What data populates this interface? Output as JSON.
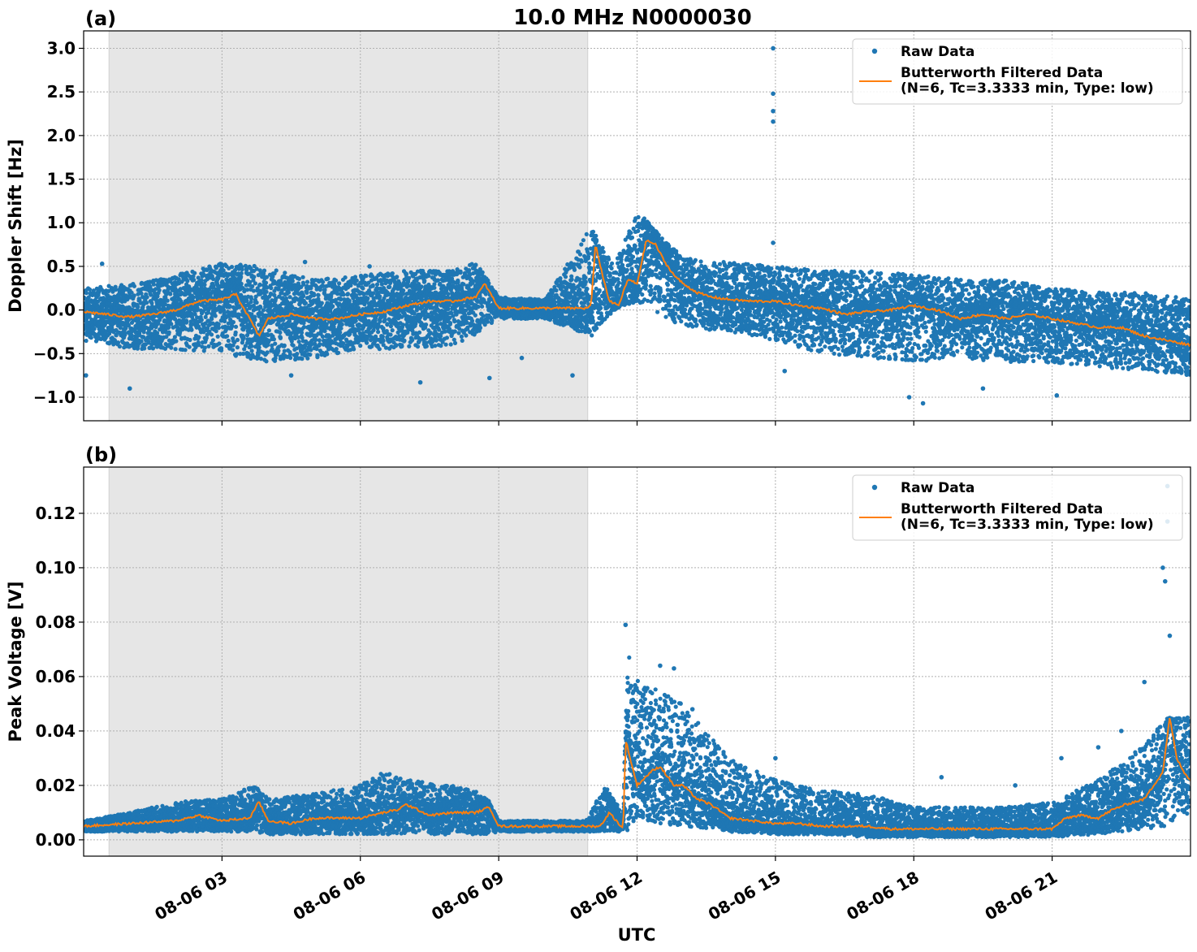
{
  "figure": {
    "title": "10.0 MHz N0000030",
    "xlabel": "UTC"
  },
  "colors": {
    "raw": "#1f77b4",
    "filtered": "#ff7f0e",
    "night_shade": "#e6e6e6",
    "grid": "#b0b0b0"
  },
  "chart_data": [
    {
      "type": "scatter",
      "panel_label": "(a)",
      "title": "10.0 MHz N0000030",
      "xlabel": "",
      "ylabel": "Doppler Shift [Hz]",
      "xlim_hours": [
        0.0,
        24.0
      ],
      "ylim": [
        -1.27,
        3.2
      ],
      "yticks": [
        3.0,
        2.5,
        2.0,
        1.5,
        1.0,
        0.5,
        0.0,
        -0.5,
        -1.0
      ],
      "ytick_labels": [
        "3.0",
        "2.5",
        "2.0",
        "1.5",
        "1.0",
        "0.5",
        "0.0",
        "−0.5",
        "−1.0"
      ],
      "xticks_hours": [
        3,
        6,
        9,
        12,
        15,
        18,
        21
      ],
      "shaded_interval_hours": [
        0.55,
        10.93
      ],
      "grid": true,
      "legend_placement": "top-right",
      "legend": [
        "Raw Data",
        "Butterworth Filtered Data\n(N=6, Tc=3.3333 min, Type: low)"
      ],
      "series": [
        {
          "name": "Raw Data",
          "kind": "scatter_envelope",
          "x_hours": [
            0,
            1,
            2,
            3,
            4,
            5,
            6,
            7,
            8,
            8.5,
            9,
            10,
            11,
            11.5,
            12,
            12.5,
            13,
            14,
            15,
            16,
            17,
            18,
            19,
            20,
            21,
            22,
            23,
            24
          ],
          "upper": [
            0.25,
            0.3,
            0.4,
            0.55,
            0.5,
            0.35,
            0.4,
            0.45,
            0.45,
            0.55,
            0.15,
            0.12,
            0.95,
            0.5,
            1.15,
            0.85,
            0.6,
            0.55,
            0.5,
            0.45,
            0.45,
            0.4,
            0.35,
            0.35,
            0.25,
            0.2,
            0.2,
            0.15
          ],
          "lower": [
            -0.35,
            -0.45,
            -0.45,
            -0.5,
            -0.6,
            -0.55,
            -0.45,
            -0.45,
            -0.4,
            -0.3,
            -0.1,
            -0.1,
            -0.3,
            0.0,
            0.1,
            -0.05,
            -0.2,
            -0.25,
            -0.35,
            -0.5,
            -0.55,
            -0.6,
            -0.55,
            -0.6,
            -0.6,
            -0.65,
            -0.7,
            -0.75
          ],
          "outliers": [
            [
              0.05,
              -0.75
            ],
            [
              0.4,
              0.53
            ],
            [
              1.0,
              -0.9
            ],
            [
              4.5,
              -0.75
            ],
            [
              4.8,
              0.55
            ],
            [
              6.2,
              0.5
            ],
            [
              7.3,
              -0.83
            ],
            [
              8.8,
              -0.78
            ],
            [
              9.5,
              -0.55
            ],
            [
              10.6,
              -0.75
            ],
            [
              14.95,
              3.0
            ],
            [
              14.95,
              2.48
            ],
            [
              14.95,
              2.28
            ],
            [
              14.95,
              2.16
            ],
            [
              14.95,
              0.77
            ],
            [
              15.2,
              -0.7
            ],
            [
              17.9,
              -1.0
            ],
            [
              18.2,
              -1.07
            ],
            [
              19.5,
              -0.9
            ],
            [
              21.1,
              -0.98
            ]
          ]
        },
        {
          "name": "Butterworth Filtered Data\n(N=6, Tc=3.3333 min, Type: low)",
          "kind": "line",
          "x_hours": [
            0,
            0.5,
            1,
            1.5,
            2,
            2.5,
            3,
            3.3,
            3.6,
            3.8,
            4,
            4.5,
            5,
            5.5,
            6,
            6.5,
            7,
            7.5,
            8,
            8.5,
            8.7,
            9,
            10,
            10.5,
            10.9,
            11.0,
            11.1,
            11.25,
            11.4,
            11.6,
            11.8,
            12,
            12.2,
            12.4,
            12.6,
            12.8,
            13,
            13.3,
            13.6,
            14,
            14.5,
            15,
            15.5,
            16,
            16.5,
            17,
            17.5,
            18,
            18.5,
            19,
            19.5,
            20,
            20.5,
            21,
            21.5,
            22,
            22.5,
            23,
            23.5,
            24
          ],
          "values": [
            -0.02,
            -0.05,
            -0.08,
            -0.05,
            0.0,
            0.1,
            0.12,
            0.18,
            -0.1,
            -0.3,
            -0.1,
            -0.05,
            -0.1,
            -0.1,
            -0.05,
            -0.02,
            0.05,
            0.1,
            0.1,
            0.15,
            0.3,
            0.02,
            0.02,
            0.02,
            0.02,
            0.05,
            0.75,
            0.4,
            0.1,
            0.05,
            0.35,
            0.3,
            0.8,
            0.75,
            0.55,
            0.4,
            0.3,
            0.2,
            0.15,
            0.12,
            0.1,
            0.1,
            0.05,
            0.02,
            -0.05,
            -0.02,
            0.0,
            0.05,
            0.0,
            -0.1,
            -0.05,
            -0.1,
            -0.05,
            -0.1,
            -0.15,
            -0.2,
            -0.2,
            -0.3,
            -0.35,
            -0.4
          ]
        }
      ]
    },
    {
      "type": "scatter",
      "panel_label": "(b)",
      "title": "",
      "xlabel": "UTC",
      "ylabel": "Peak Voltage [V]",
      "xlim_hours": [
        0.0,
        24.0
      ],
      "ylim": [
        -0.006,
        0.137
      ],
      "yticks": [
        0.12,
        0.1,
        0.08,
        0.06,
        0.04,
        0.02,
        0.0
      ],
      "ytick_labels": [
        "0.12",
        "0.10",
        "0.08",
        "0.06",
        "0.04",
        "0.02",
        "0.00"
      ],
      "xticks_hours": [
        3,
        6,
        9,
        12,
        15,
        18,
        21
      ],
      "xtick_labels": [
        "08-06 03",
        "08-06 06",
        "08-06 09",
        "08-06 12",
        "08-06 15",
        "08-06 18",
        "08-06 21"
      ],
      "shaded_interval_hours": [
        0.55,
        10.93
      ],
      "grid": true,
      "legend_placement": "top-right",
      "legend": [
        "Raw Data",
        "Butterworth Filtered Data\n(N=6, Tc=3.3333 min, Type: low)"
      ],
      "series": [
        {
          "name": "Raw Data",
          "kind": "scatter_envelope",
          "x_hours": [
            0,
            1,
            2,
            3,
            3.7,
            4,
            5,
            6,
            6.5,
            7,
            8,
            8.5,
            8.8,
            9,
            10,
            10.9,
            11.3,
            11.7,
            11.8,
            12,
            12.5,
            13,
            13.5,
            14,
            15,
            16,
            17,
            18,
            19,
            20,
            21,
            22,
            22.5,
            23,
            23.5,
            24
          ],
          "upper": [
            0.007,
            0.01,
            0.014,
            0.015,
            0.02,
            0.015,
            0.017,
            0.02,
            0.025,
            0.022,
            0.02,
            0.018,
            0.014,
            0.007,
            0.007,
            0.007,
            0.02,
            0.01,
            0.07,
            0.06,
            0.055,
            0.05,
            0.04,
            0.03,
            0.022,
            0.018,
            0.017,
            0.012,
            0.012,
            0.012,
            0.014,
            0.022,
            0.028,
            0.035,
            0.045,
            0.045
          ],
          "lower": [
            0.003,
            0.003,
            0.003,
            0.003,
            0.003,
            0.002,
            0.002,
            0.002,
            0.002,
            0.002,
            0.002,
            0.002,
            0.002,
            0.003,
            0.003,
            0.003,
            0.003,
            0.003,
            0.003,
            0.008,
            0.006,
            0.005,
            0.004,
            0.003,
            0.002,
            0.002,
            0.001,
            0.001,
            0.001,
            0.001,
            0.001,
            0.002,
            0.003,
            0.004,
            0.005,
            0.01
          ],
          "outliers": [
            [
              11.75,
              0.079
            ],
            [
              12.5,
              0.064
            ],
            [
              12.8,
              0.063
            ],
            [
              13.2,
              0.048
            ],
            [
              15.0,
              0.03
            ],
            [
              18.6,
              0.023
            ],
            [
              20.2,
              0.02
            ],
            [
              21.2,
              0.03
            ],
            [
              22.0,
              0.034
            ],
            [
              22.5,
              0.04
            ],
            [
              23.0,
              0.058
            ],
            [
              23.4,
              0.1
            ],
            [
              23.5,
              0.13
            ],
            [
              23.5,
              0.117
            ],
            [
              23.45,
              0.095
            ],
            [
              23.55,
              0.075
            ]
          ]
        },
        {
          "name": "Butterworth Filtered Data\n(N=6, Tc=3.3333 min, Type: low)",
          "kind": "line",
          "x_hours": [
            0,
            1,
            2,
            2.5,
            3,
            3.6,
            3.8,
            4,
            4.5,
            5,
            5.5,
            6,
            6.5,
            6.8,
            7,
            7.5,
            8,
            8.5,
            8.8,
            9,
            10,
            10.9,
            11.2,
            11.4,
            11.7,
            11.75,
            11.85,
            12,
            12.3,
            12.5,
            12.8,
            13,
            13.3,
            13.6,
            14,
            14.5,
            15,
            15.5,
            16,
            16.5,
            17,
            17.5,
            18,
            18.5,
            19,
            19.5,
            20,
            20.5,
            21,
            21.3,
            21.6,
            22,
            22.3,
            22.6,
            23,
            23.2,
            23.4,
            23.55,
            23.7,
            23.85,
            24
          ],
          "values": [
            0.005,
            0.006,
            0.007,
            0.009,
            0.007,
            0.008,
            0.014,
            0.007,
            0.006,
            0.008,
            0.008,
            0.008,
            0.01,
            0.011,
            0.013,
            0.009,
            0.01,
            0.01,
            0.012,
            0.005,
            0.005,
            0.005,
            0.005,
            0.01,
            0.004,
            0.037,
            0.03,
            0.02,
            0.025,
            0.027,
            0.02,
            0.02,
            0.015,
            0.013,
            0.008,
            0.007,
            0.006,
            0.006,
            0.005,
            0.005,
            0.005,
            0.004,
            0.004,
            0.004,
            0.004,
            0.004,
            0.004,
            0.004,
            0.004,
            0.008,
            0.009,
            0.008,
            0.011,
            0.013,
            0.015,
            0.02,
            0.025,
            0.045,
            0.03,
            0.025,
            0.022
          ]
        }
      ]
    }
  ]
}
